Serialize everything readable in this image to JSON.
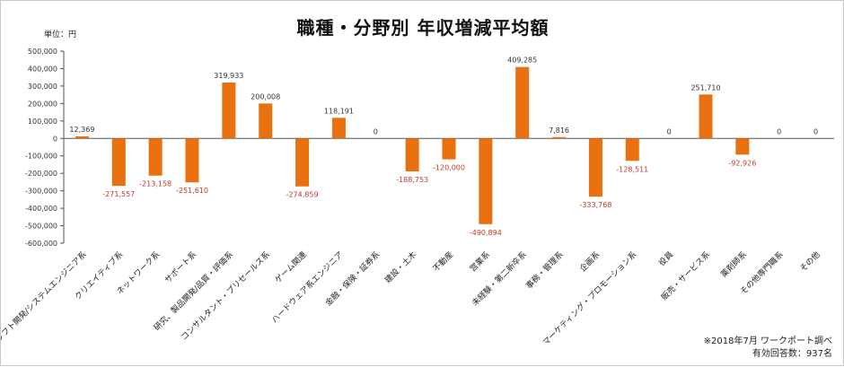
{
  "chart_data": {
    "type": "bar",
    "title": "職種・分野別 年収増減平均額",
    "unit_label": "単位：円",
    "ylim": [
      -600000,
      500000
    ],
    "yticks": [
      "500,000",
      "400,000",
      "300,000",
      "200,000",
      "100,000",
      "0",
      "-100,000",
      "-200,000",
      "-300,000",
      "-400,000",
      "-500,000",
      "-600,000"
    ],
    "ytick_values": [
      500000,
      400000,
      300000,
      200000,
      100000,
      0,
      -100000,
      -200000,
      -300000,
      -400000,
      -500000,
      -600000
    ],
    "categories": [
      "ソフト開発/システムエンジニア系",
      "クリエイティブ系",
      "ネットワーク系",
      "サポート系",
      "研究、製品開発/品質・評価系",
      "コンサルタント・プリセールス系",
      "ゲーム関連",
      "ハードウェア系エンジニア",
      "金融・保険・証券系",
      "建設・土木",
      "不動産",
      "営業系",
      "未経験・第二新卒系",
      "事務・管理系",
      "企画系",
      "マーケティング・プロモーション系",
      "役員",
      "販売・サービス系",
      "薬剤師系",
      "その他専門職系",
      "その他"
    ],
    "values": [
      12369,
      -271557,
      -213158,
      -251610,
      319933,
      200008,
      -274859,
      118191,
      0,
      -188753,
      -120000,
      -490894,
      409285,
      7816,
      -333768,
      -128511,
      0,
      251710,
      -92926,
      0,
      0
    ],
    "value_labels": [
      "12,369",
      "-271,557",
      "-213,158",
      "-251,610",
      "319,933",
      "200,008",
      "-274,859",
      "118,191",
      "0",
      "-188,753",
      "-120,000",
      "-490,894",
      "409,285",
      "7,816",
      "-333,768",
      "-128,511",
      "0",
      "251,710",
      "-92,926",
      "0",
      "0"
    ],
    "bar_color": "#e8700f",
    "negative_label_color": "#c0392b",
    "positive_label_color": "#333333",
    "grid": false,
    "legend": "none"
  },
  "footer": {
    "source": "※2018年7月 ワークポート調べ",
    "respondents": "有効回答数：937名"
  }
}
